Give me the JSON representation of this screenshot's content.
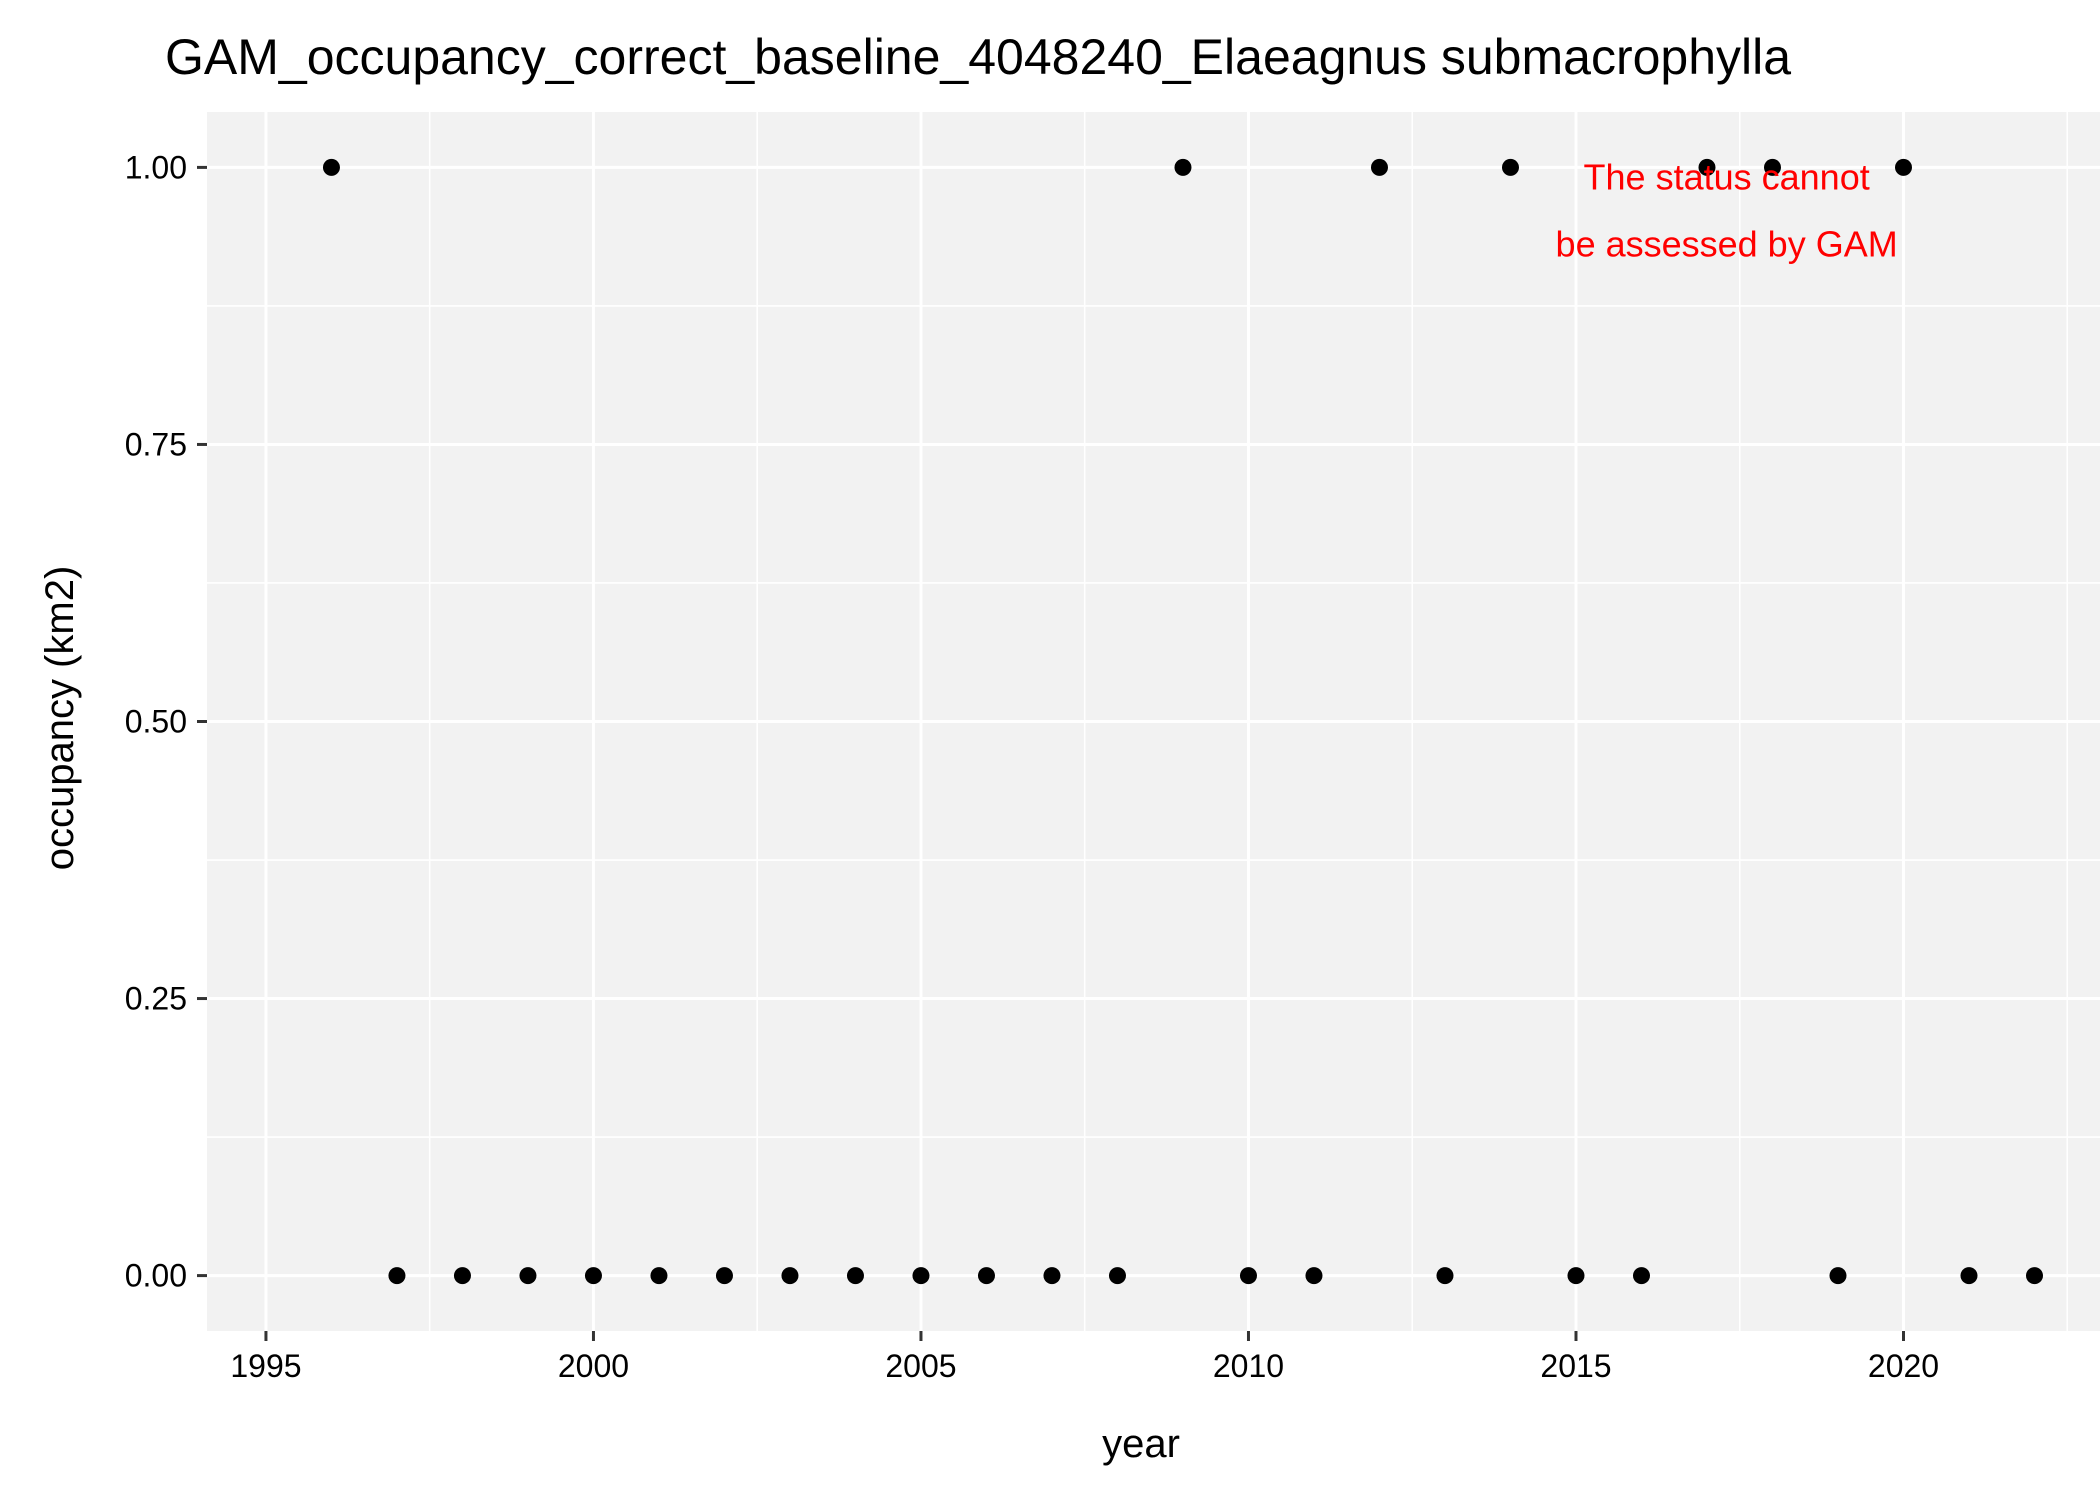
{
  "chart_data": {
    "type": "scatter",
    "title": "GAM_occupancy_correct_baseline_4048240_Elaeagnus submacrophylla",
    "xlabel": "year",
    "ylabel": "occupancy (km2)",
    "xlim": [
      1994.1,
      2023.0
    ],
    "ylim": [
      -0.05,
      1.05
    ],
    "x_ticks": [
      1995,
      2000,
      2005,
      2010,
      2015,
      2020
    ],
    "x_tick_labels": [
      "1995",
      "2000",
      "2005",
      "2010",
      "2015",
      "2020"
    ],
    "y_ticks": [
      0,
      0.25,
      0.5,
      0.75,
      1.0
    ],
    "y_tick_labels": [
      "0.00",
      "0.25",
      "0.50",
      "0.75",
      "1.00"
    ],
    "grid": true,
    "legend": "none",
    "point_color": "#000000",
    "panel_color": "#f2f2f2",
    "grid_color": "#ffffff",
    "points": [
      {
        "x": 1996,
        "y": 1
      },
      {
        "x": 1997,
        "y": 0
      },
      {
        "x": 1998,
        "y": 0
      },
      {
        "x": 1999,
        "y": 0
      },
      {
        "x": 2000,
        "y": 0
      },
      {
        "x": 2001,
        "y": 0
      },
      {
        "x": 2002,
        "y": 0
      },
      {
        "x": 2003,
        "y": 0
      },
      {
        "x": 2004,
        "y": 0
      },
      {
        "x": 2005,
        "y": 0
      },
      {
        "x": 2006,
        "y": 0
      },
      {
        "x": 2007,
        "y": 0
      },
      {
        "x": 2008,
        "y": 0
      },
      {
        "x": 2009,
        "y": 1
      },
      {
        "x": 2010,
        "y": 0
      },
      {
        "x": 2011,
        "y": 0
      },
      {
        "x": 2012,
        "y": 1
      },
      {
        "x": 2013,
        "y": 0
      },
      {
        "x": 2014,
        "y": 1
      },
      {
        "x": 2015,
        "y": 0
      },
      {
        "x": 2016,
        "y": 0
      },
      {
        "x": 2017,
        "y": 1
      },
      {
        "x": 2018,
        "y": 1
      },
      {
        "x": 2019,
        "y": 0
      },
      {
        "x": 2020,
        "y": 1
      },
      {
        "x": 2021,
        "y": 0
      },
      {
        "x": 2022,
        "y": 0
      }
    ],
    "annotation": {
      "lines": [
        "The status cannot",
        "be assessed by GAM"
      ],
      "color": "#ff0000"
    }
  }
}
